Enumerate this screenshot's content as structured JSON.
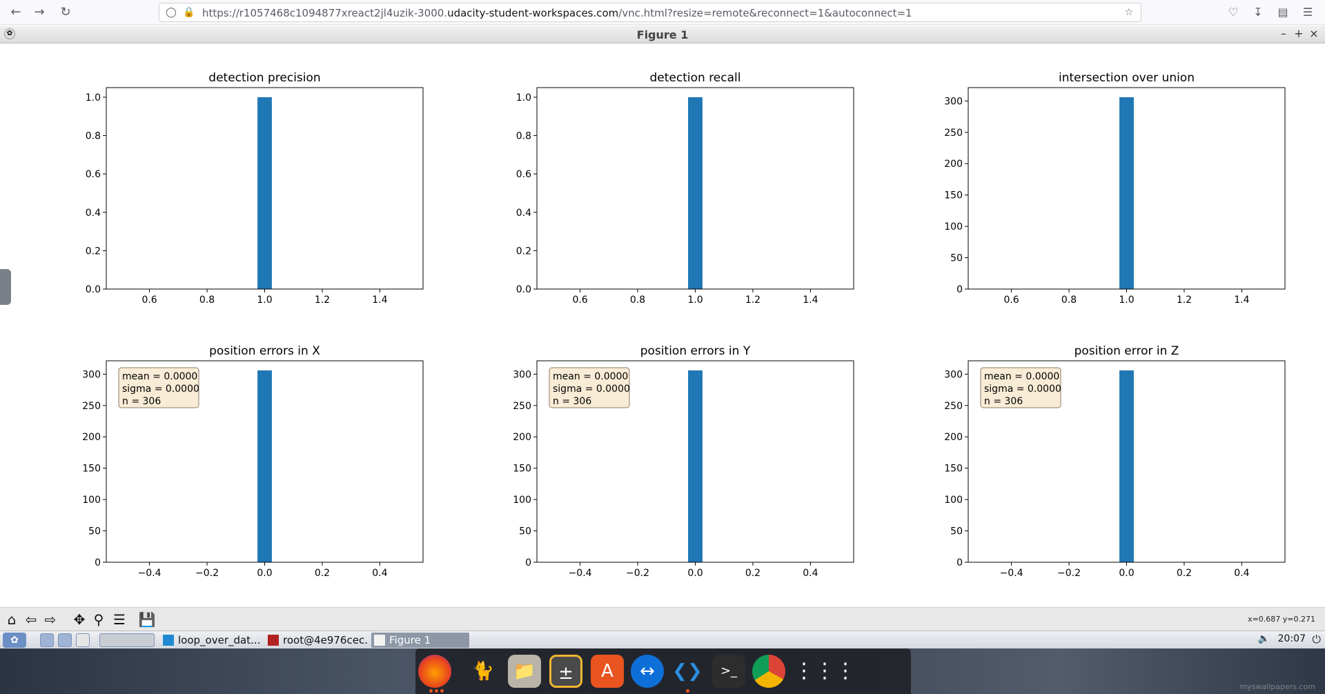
{
  "browser": {
    "url_prefix": "https://r1057468c1094877xreact2jl4uzik-3000.",
    "url_host": "udacity-student-workspaces.com",
    "url_suffix": "/vnc.html?resize=remote&reconnect=1&autoconnect=1"
  },
  "window": {
    "title": "Figure 1"
  },
  "toolbar": {
    "coords": "x=0.687 y=0.271"
  },
  "taskbar": {
    "tasks": [
      {
        "label": "loop_over_dat..."
      },
      {
        "label": "root@4e976cec..."
      },
      {
        "label": "Figure 1"
      }
    ],
    "clock": "20:07"
  },
  "desktop": {
    "watermark": "myswallpapers.com"
  },
  "chart_data": [
    {
      "type": "bar",
      "title": "detection precision",
      "bins": [
        {
          "x": 1.0,
          "width": 0.05,
          "value": 1.0
        }
      ],
      "xlim": [
        0.45,
        1.55
      ],
      "ylim": [
        0,
        1.05
      ],
      "xticks": [
        0.6,
        0.8,
        1.0,
        1.2,
        1.4
      ],
      "xtick_labels": [
        "0.6",
        "0.8",
        "1.0",
        "1.2",
        "1.4"
      ],
      "yticks": [
        0.0,
        0.2,
        0.4,
        0.6,
        0.8,
        1.0
      ],
      "ytick_labels": [
        "0.0",
        "0.2",
        "0.4",
        "0.6",
        "0.8",
        "1.0"
      ],
      "color": "#1f77b4"
    },
    {
      "type": "bar",
      "title": "detection recall",
      "bins": [
        {
          "x": 1.0,
          "width": 0.05,
          "value": 1.0
        }
      ],
      "xlim": [
        0.45,
        1.55
      ],
      "ylim": [
        0,
        1.05
      ],
      "xticks": [
        0.6,
        0.8,
        1.0,
        1.2,
        1.4
      ],
      "xtick_labels": [
        "0.6",
        "0.8",
        "1.0",
        "1.2",
        "1.4"
      ],
      "yticks": [
        0.0,
        0.2,
        0.4,
        0.6,
        0.8,
        1.0
      ],
      "ytick_labels": [
        "0.0",
        "0.2",
        "0.4",
        "0.6",
        "0.8",
        "1.0"
      ],
      "color": "#1f77b4"
    },
    {
      "type": "bar",
      "title": "intersection over union",
      "bins": [
        {
          "x": 1.0,
          "width": 0.05,
          "value": 306
        }
      ],
      "xlim": [
        0.45,
        1.55
      ],
      "ylim": [
        0,
        321.3
      ],
      "xticks": [
        0.6,
        0.8,
        1.0,
        1.2,
        1.4
      ],
      "xtick_labels": [
        "0.6",
        "0.8",
        "1.0",
        "1.2",
        "1.4"
      ],
      "yticks": [
        0,
        50,
        100,
        150,
        200,
        250,
        300
      ],
      "ytick_labels": [
        "0",
        "50",
        "100",
        "150",
        "200",
        "250",
        "300"
      ],
      "color": "#1f77b4"
    },
    {
      "type": "bar",
      "title": "position errors in X",
      "bins": [
        {
          "x": 0.0,
          "width": 0.05,
          "value": 306
        }
      ],
      "xlim": [
        -0.55,
        0.55
      ],
      "ylim": [
        0,
        321.3
      ],
      "xticks": [
        -0.4,
        -0.2,
        0.0,
        0.2,
        0.4
      ],
      "xtick_labels": [
        "−0.4",
        "−0.2",
        "0.0",
        "0.2",
        "0.4"
      ],
      "yticks": [
        0,
        50,
        100,
        150,
        200,
        250,
        300
      ],
      "ytick_labels": [
        "0",
        "50",
        "100",
        "150",
        "200",
        "250",
        "300"
      ],
      "stats": [
        "mean = 0.0000",
        "sigma = 0.0000",
        "n = 306"
      ],
      "color": "#1f77b4"
    },
    {
      "type": "bar",
      "title": "position errors in Y",
      "bins": [
        {
          "x": 0.0,
          "width": 0.05,
          "value": 306
        }
      ],
      "xlim": [
        -0.55,
        0.55
      ],
      "ylim": [
        0,
        321.3
      ],
      "xticks": [
        -0.4,
        -0.2,
        0.0,
        0.2,
        0.4
      ],
      "xtick_labels": [
        "−0.4",
        "−0.2",
        "0.0",
        "0.2",
        "0.4"
      ],
      "yticks": [
        0,
        50,
        100,
        150,
        200,
        250,
        300
      ],
      "ytick_labels": [
        "0",
        "50",
        "100",
        "150",
        "200",
        "250",
        "300"
      ],
      "stats": [
        "mean = 0.0000",
        "sigma = 0.0000",
        "n = 306"
      ],
      "color": "#1f77b4"
    },
    {
      "type": "bar",
      "title": "position error in Z",
      "bins": [
        {
          "x": 0.0,
          "width": 0.05,
          "value": 306
        }
      ],
      "xlim": [
        -0.55,
        0.55
      ],
      "ylim": [
        0,
        321.3
      ],
      "xticks": [
        -0.4,
        -0.2,
        0.0,
        0.2,
        0.4
      ],
      "xtick_labels": [
        "−0.4",
        "−0.2",
        "0.0",
        "0.2",
        "0.4"
      ],
      "yticks": [
        0,
        50,
        100,
        150,
        200,
        250,
        300
      ],
      "ytick_labels": [
        "0",
        "50",
        "100",
        "150",
        "200",
        "250",
        "300"
      ],
      "stats": [
        "mean = 0.0000",
        "sigma = 0.0000",
        "n = 306"
      ],
      "color": "#1f77b4"
    }
  ]
}
